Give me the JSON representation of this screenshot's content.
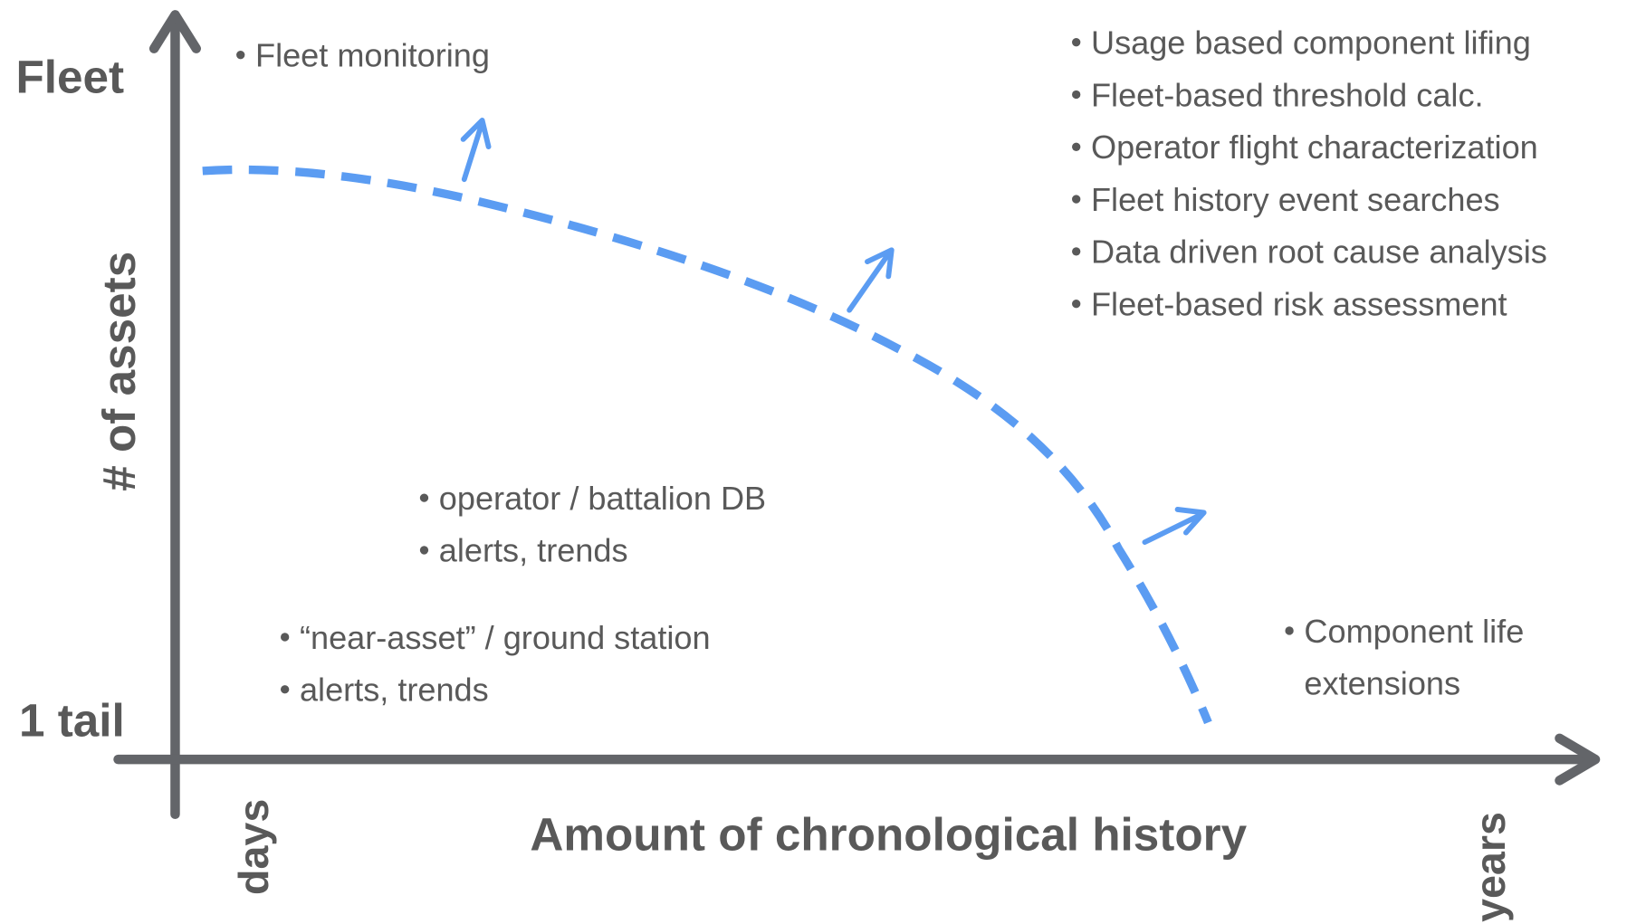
{
  "axes": {
    "y_top": "Fleet",
    "y_bottom": "1 tail",
    "y_title": "# of assets",
    "x_left": "days",
    "x_right": "years",
    "x_title": "Amount of chronological history"
  },
  "groups": [
    {
      "items": [
        [
          "Fleet monitoring"
        ]
      ]
    },
    {
      "items": [
        [
          "Usage based component lifing"
        ],
        [
          "Fleet-based threshold calc."
        ],
        [
          "Operator flight characterization"
        ],
        [
          "Fleet history event searches"
        ],
        [
          "Data driven root cause analysis"
        ],
        [
          "Fleet-based risk assessment"
        ]
      ]
    },
    {
      "items": [
        [
          "operator / battalion DB"
        ],
        [
          "alerts, trends"
        ]
      ]
    },
    {
      "items": [
        [
          "“near-asset” / ground station"
        ],
        [
          "alerts, trends"
        ]
      ]
    },
    {
      "items": [
        [
          "Component life",
          "extensions"
        ]
      ]
    }
  ]
}
